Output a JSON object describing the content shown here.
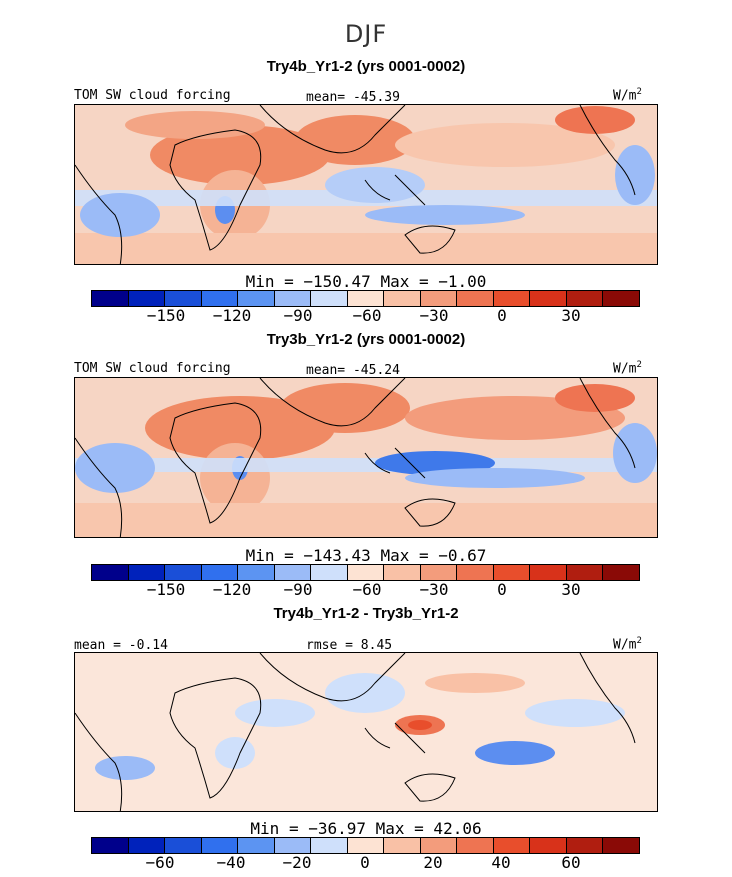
{
  "figure": {
    "season": "DJF"
  },
  "palette": [
    "#00008b",
    "#0022bb",
    "#1a4fd8",
    "#3070ee",
    "#5c94f2",
    "#9bbbf7",
    "#cfe0fb",
    "#fde3d3",
    "#f9c1a6",
    "#f39c7c",
    "#ee7452",
    "#e84e2c",
    "#d8321a",
    "#b01e10",
    "#8a0a06"
  ],
  "coastline_color": "#000000",
  "panels": [
    {
      "title": "Try4b_Yr1-2 (yrs 0001-0002)",
      "left_label": "TOM SW cloud forcing",
      "center_label": "mean= -45.39",
      "units": "W/m",
      "units_sup": "2",
      "stats": "Min = −150.47 Max =  −1.00",
      "colorbar_ticks": [
        "−150",
        "−120",
        "−90",
        "−60",
        "−30",
        "0",
        "30"
      ]
    },
    {
      "title": "Try3b_Yr1-2 (yrs 0001-0002)",
      "left_label": "TOM SW cloud forcing",
      "center_label": "mean= -45.24",
      "units": "W/m",
      "units_sup": "2",
      "stats": "Min = −143.43 Max =  −0.67",
      "colorbar_ticks": [
        "−150",
        "−120",
        "−90",
        "−60",
        "−30",
        "0",
        "30"
      ]
    },
    {
      "title": "Try4b_Yr1-2 - Try3b_Yr1-2",
      "left_label": "mean =  -0.14",
      "center_label": "rmse =   8.45",
      "units": "W/m",
      "units_sup": "2",
      "stats": "Min = −36.97 Max =  42.06",
      "colorbar_ticks": [
        "−60",
        "−40",
        "−20",
        "0",
        "20",
        "40",
        "60"
      ]
    }
  ]
}
